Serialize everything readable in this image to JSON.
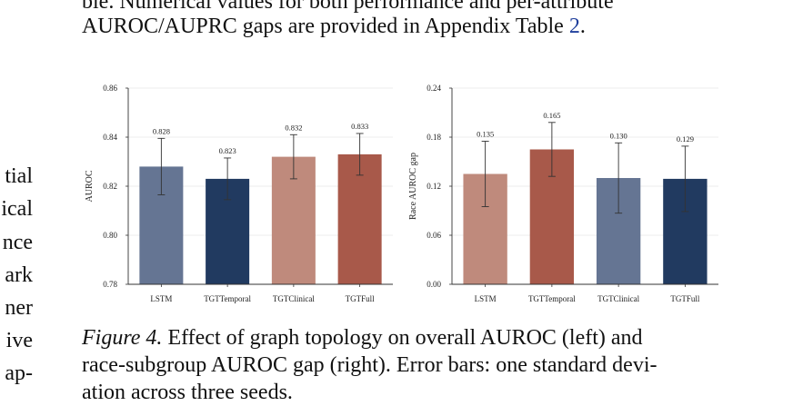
{
  "paper": {
    "top_line1": "ble.  Numerical values for both performance and per-attribute",
    "top_line2_prefix": "AUROC/AUPRC gaps are provided in Appendix Table ",
    "top_line2_ref": "2",
    "top_line2_suffix": ".",
    "left_column_fragments": [
      "tial",
      "ical",
      "nce",
      "ark",
      "ner",
      "ive",
      "ap-"
    ],
    "caption_label": "Figure 4.",
    "caption_line1": " Effect of graph topology on overall AUROC (left) and",
    "caption_line2": "race-subgroup AUROC gap (right). Error bars: one standard devi-",
    "caption_line3": "ation across three seeds."
  },
  "colors": {
    "LSTM_left": "#657593",
    "TGTTemporal_left": "#213a60",
    "TGTClinical_left": "#bf8a7c",
    "TGTFull_left": "#a8594a",
    "LSTM_right": "#bf8a7c",
    "TGTTemporal_right": "#a8594a",
    "TGTClinical_right": "#657593",
    "TGTFull_right": "#213a60",
    "text_ref": "#1f3f9c"
  },
  "chart_data": [
    {
      "type": "bar",
      "categories": [
        "LSTM",
        "TGTTemporal",
        "TGTClinical",
        "TGTFull"
      ],
      "values": [
        0.828,
        0.823,
        0.832,
        0.833
      ],
      "value_labels": [
        "0.828",
        "0.823",
        "0.832",
        "0.833"
      ],
      "error": [
        0.0115,
        0.0085,
        0.009,
        0.0085
      ],
      "colors": [
        "#657593",
        "#213a60",
        "#bf8a7c",
        "#a8594a"
      ],
      "ylabel": "AUROC",
      "ylim": [
        0.78,
        0.86
      ],
      "yticks": [
        0.78,
        0.8,
        0.82,
        0.84,
        0.86
      ],
      "ytick_labels": [
        "0.78",
        "0.80",
        "0.82",
        "0.84",
        "0.86"
      ],
      "grid": true
    },
    {
      "type": "bar",
      "categories": [
        "LSTM",
        "TGTTemporal",
        "TGTClinical",
        "TGTFull"
      ],
      "values": [
        0.135,
        0.165,
        0.13,
        0.129
      ],
      "value_labels": [
        "0.135",
        "0.165",
        "0.130",
        "0.129"
      ],
      "error": [
        0.04,
        0.033,
        0.043,
        0.04
      ],
      "colors": [
        "#bf8a7c",
        "#a8594a",
        "#657593",
        "#213a60"
      ],
      "ylabel": "Race AUROC gap",
      "ylim": [
        0.0,
        0.24
      ],
      "yticks": [
        0.0,
        0.06,
        0.12,
        0.18,
        0.24
      ],
      "ytick_labels": [
        "0.00",
        "0.06",
        "0.12",
        "0.18",
        "0.24"
      ],
      "grid": true
    }
  ]
}
